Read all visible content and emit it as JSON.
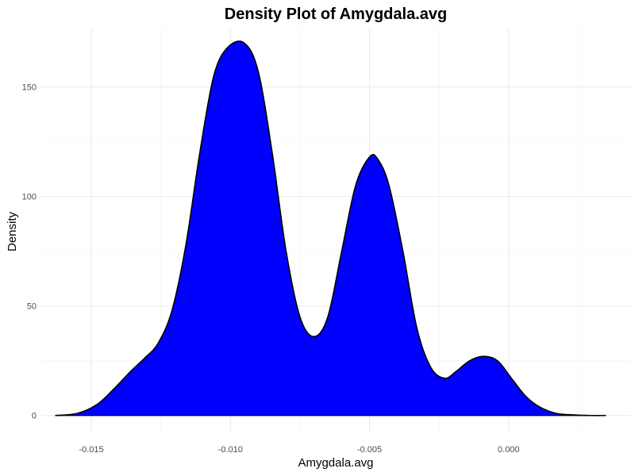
{
  "chart_data": {
    "type": "area",
    "title": "Density Plot of Amygdala.avg",
    "xlabel": "Amygdala.avg",
    "ylabel": "Density",
    "xlim": [
      -0.0168,
      0.0044
    ],
    "ylim": [
      -7.7,
      177
    ],
    "x_ticks": [
      -0.015,
      -0.01,
      -0.005,
      0.0
    ],
    "x_tick_labels": [
      "-0.015",
      "-0.010",
      "-0.005",
      "0.000"
    ],
    "y_ticks": [
      0,
      50,
      100,
      150
    ],
    "y_tick_labels": [
      "0",
      "50",
      "100",
      "150"
    ],
    "grid": true,
    "fill_color": "#0000FF",
    "line_color": "#000000",
    "series": [
      {
        "x": [
          -0.0163,
          -0.0155,
          -0.0148,
          -0.0142,
          -0.0136,
          -0.0131,
          -0.0126,
          -0.0121,
          -0.0116,
          -0.0111,
          -0.0106,
          -0.0101,
          -0.0095,
          -0.009,
          -0.0085,
          -0.008,
          -0.0075,
          -0.007,
          -0.0065,
          -0.006,
          -0.0055,
          -0.005,
          -0.0047,
          -0.0043,
          -0.0038,
          -0.0033,
          -0.0028,
          -0.0023,
          -0.0019,
          -0.0014,
          -0.0009,
          -0.0004,
          0.0001,
          0.0006,
          0.0011,
          0.0017,
          0.0023,
          0.003,
          0.0035
        ],
        "y": [
          0,
          1,
          5,
          12,
          20,
          26,
          33,
          48,
          78,
          120,
          155,
          168,
          170,
          157,
          120,
          75,
          45,
          36,
          45,
          75,
          105,
          118,
          117,
          105,
          75,
          40,
          22,
          17,
          20,
          25,
          27,
          25,
          17,
          9,
          4,
          1,
          0.3,
          0,
          0
        ]
      }
    ]
  }
}
